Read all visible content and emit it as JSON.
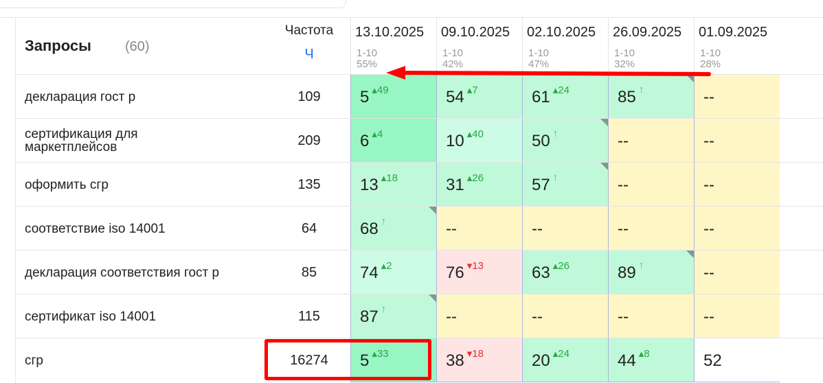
{
  "header": {
    "queries_label": "Запросы",
    "queries_count": "(60)",
    "frequency_label": "Частота",
    "frequency_sub": "Ч"
  },
  "dates": [
    {
      "date": "13.10.2025",
      "range": "1-10",
      "percent": "55%"
    },
    {
      "date": "09.10.2025",
      "range": "1-10",
      "percent": "42%"
    },
    {
      "date": "02.10.2025",
      "range": "1-10",
      "percent": "47%"
    },
    {
      "date": "26.09.2025",
      "range": "1-10",
      "percent": "32%"
    },
    {
      "date": "01.09.2025",
      "range": "1-10",
      "percent": "28%"
    }
  ],
  "colors": {
    "strong": "#98f5c4",
    "medium": "#bff9d9",
    "light": "#ccfce6",
    "absent": "#fff6c6",
    "drop": "#ffe4e4",
    "highlight": "#ff0000"
  },
  "rows": [
    {
      "query": "декларация гост р",
      "freq": "109",
      "cells": [
        {
          "v": "5",
          "ch": "▴49",
          "t": "up",
          "c": "strong"
        },
        {
          "v": "54",
          "ch": "▴7",
          "t": "up",
          "c": "med"
        },
        {
          "v": "61",
          "ch": "▴24",
          "t": "up",
          "c": "med"
        },
        {
          "v": "85",
          "ch": "↑",
          "t": "nw",
          "c": "med",
          "corner": true
        },
        {
          "v": "--",
          "c": "yel"
        }
      ]
    },
    {
      "query": "сертификация для маркетплейсов",
      "freq": "209",
      "cells": [
        {
          "v": "6",
          "ch": "▴4",
          "t": "up",
          "c": "strong"
        },
        {
          "v": "10",
          "ch": "▴40",
          "t": "up",
          "c": "light"
        },
        {
          "v": "50",
          "ch": "↑",
          "t": "nw",
          "c": "med",
          "corner": true
        },
        {
          "v": "--",
          "c": "yel"
        },
        {
          "v": "--",
          "c": "yel"
        }
      ]
    },
    {
      "query": "оформить сгр",
      "freq": "135",
      "cells": [
        {
          "v": "13",
          "ch": "▴18",
          "t": "up",
          "c": "med"
        },
        {
          "v": "31",
          "ch": "▴26",
          "t": "up",
          "c": "med"
        },
        {
          "v": "57",
          "ch": "↑",
          "t": "nw",
          "c": "med",
          "corner": true
        },
        {
          "v": "--",
          "c": "yel"
        },
        {
          "v": "--",
          "c": "yel"
        }
      ]
    },
    {
      "query": "соответствие iso 14001",
      "freq": "64",
      "cells": [
        {
          "v": "68",
          "ch": "↑",
          "t": "nw",
          "c": "med",
          "corner": true
        },
        {
          "v": "--",
          "c": "yel"
        },
        {
          "v": "--",
          "c": "yel"
        },
        {
          "v": "--",
          "c": "yel"
        },
        {
          "v": "--",
          "c": "yel"
        }
      ]
    },
    {
      "query": "декларация соответствия гост р",
      "freq": "85",
      "cells": [
        {
          "v": "74",
          "ch": "▴2",
          "t": "up",
          "c": "light"
        },
        {
          "v": "76",
          "ch": "▾13",
          "t": "dn",
          "c": "pink"
        },
        {
          "v": "63",
          "ch": "▴26",
          "t": "up",
          "c": "med"
        },
        {
          "v": "89",
          "ch": "↑",
          "t": "nw",
          "c": "med",
          "corner": true
        },
        {
          "v": "--",
          "c": "yel"
        }
      ]
    },
    {
      "query": "сертификат iso 14001",
      "freq": "115",
      "cells": [
        {
          "v": "87",
          "ch": "↑",
          "t": "nw",
          "c": "med",
          "corner": true
        },
        {
          "v": "--",
          "c": "yel"
        },
        {
          "v": "--",
          "c": "yel"
        },
        {
          "v": "--",
          "c": "yel"
        },
        {
          "v": "--",
          "c": "yel"
        }
      ]
    },
    {
      "query": "сгр",
      "freq": "16274",
      "cells": [
        {
          "v": "5",
          "ch": "▴33",
          "t": "up",
          "c": "strong"
        },
        {
          "v": "38",
          "ch": "▾18",
          "t": "dn",
          "c": "pink"
        },
        {
          "v": "20",
          "ch": "▴24",
          "t": "up",
          "c": "med"
        },
        {
          "v": "44",
          "ch": "▴8",
          "t": "up",
          "c": "med"
        },
        {
          "v": "52",
          "c": "white"
        }
      ]
    }
  ]
}
